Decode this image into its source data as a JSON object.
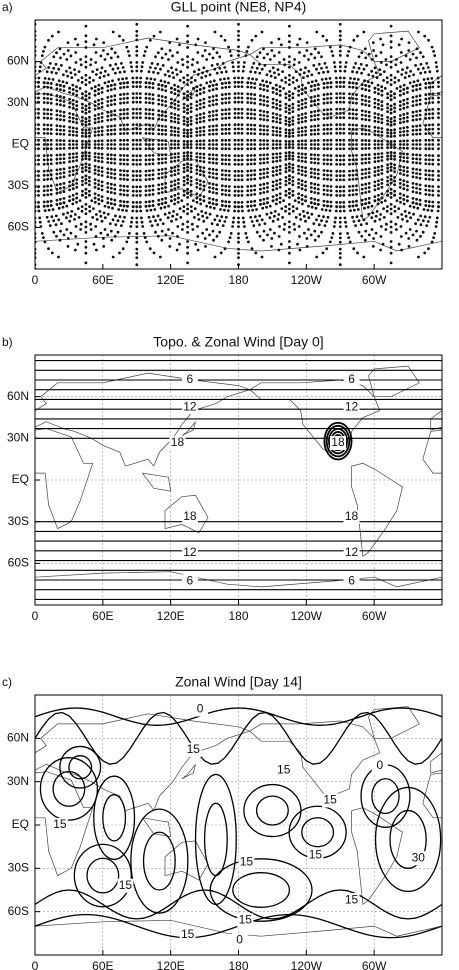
{
  "chart_data": [
    {
      "type": "gll-points",
      "panel_label": "a)",
      "title": "GLL point (NE8, NP4)",
      "ne": 8,
      "np": 4,
      "xlim": [
        0,
        360
      ],
      "ylim": [
        -90,
        90
      ],
      "grid": false,
      "xticks": [
        0,
        {
          "value": 60,
          "label": "60E"
        },
        {
          "value": 120,
          "label": "120E"
        },
        180,
        {
          "value": 240,
          "label": "120W"
        },
        {
          "value": 300,
          "label": "60W"
        }
      ],
      "yticks": [
        {
          "value": 60,
          "label": "60N"
        },
        {
          "value": 30,
          "label": "30N"
        },
        {
          "value": 0,
          "label": "EQ"
        },
        {
          "value": -30,
          "label": "30S"
        },
        {
          "value": -60,
          "label": "60S"
        }
      ]
    },
    {
      "type": "contour",
      "panel_label": "b)",
      "title": "Topo. & Zonal Wind [Day 0]",
      "xlim": [
        0,
        360
      ],
      "ylim": [
        -90,
        90
      ],
      "grid": true,
      "xticks": [
        0,
        {
          "value": 60,
          "label": "60E"
        },
        {
          "value": 120,
          "label": "120E"
        },
        180,
        {
          "value": 240,
          "label": "120W"
        },
        {
          "value": 300,
          "label": "60W"
        }
      ],
      "yticks": [
        {
          "value": 60,
          "label": "60N"
        },
        {
          "value": 30,
          "label": "30N"
        },
        {
          "value": 0,
          "label": "EQ"
        },
        {
          "value": -30,
          "label": "30S"
        },
        {
          "value": -60,
          "label": "60S"
        }
      ],
      "contour_labels": [
        {
          "value": 6,
          "x": 137,
          "y": 72
        },
        {
          "value": 6,
          "x": 280,
          "y": 72
        },
        {
          "value": 12,
          "x": 137,
          "y": 52.5
        },
        {
          "value": 12,
          "x": 280,
          "y": 52.5
        },
        {
          "value": 18,
          "x": 126,
          "y": 26.6
        },
        {
          "value": 18,
          "x": 268,
          "y": 26.6
        },
        {
          "value": 18,
          "x": 137,
          "y": -26.6
        },
        {
          "value": 18,
          "x": 280,
          "y": -26.6
        },
        {
          "value": 12,
          "x": 137,
          "y": -52.5
        },
        {
          "value": 12,
          "x": 280,
          "y": -52.5
        },
        {
          "value": 6,
          "x": 137,
          "y": -73
        },
        {
          "value": 6,
          "x": 280,
          "y": -73
        }
      ]
    },
    {
      "type": "contour",
      "panel_label": "c)",
      "title": "Zonal Wind [Day 14]",
      "xlim": [
        0,
        360
      ],
      "ylim": [
        -90,
        90
      ],
      "grid": true,
      "xticks": [
        0,
        {
          "value": 60,
          "label": "60E"
        },
        {
          "value": 120,
          "label": "120E"
        },
        180,
        {
          "value": 240,
          "label": "120W"
        },
        {
          "value": 300,
          "label": "60W"
        }
      ],
      "yticks": [
        {
          "value": 60,
          "label": "60N"
        },
        {
          "value": 30,
          "label": "30N"
        },
        {
          "value": 0,
          "label": "EQ"
        },
        {
          "value": -30,
          "label": "30S"
        },
        {
          "value": -60,
          "label": "60S"
        }
      ],
      "contour_labels": [
        {
          "value": 0,
          "x": 146,
          "y": 80
        },
        {
          "value": 15,
          "x": 140,
          "y": 52
        },
        {
          "value": 15,
          "x": 220,
          "y": 38
        },
        {
          "value": 15,
          "x": 261,
          "y": 17
        },
        {
          "value": 0,
          "x": 305,
          "y": 41
        },
        {
          "value": 15,
          "x": 22,
          "y": 0
        },
        {
          "value": 15,
          "x": 248,
          "y": -21
        },
        {
          "value": 30,
          "x": 339,
          "y": -23
        },
        {
          "value": 15,
          "x": 80,
          "y": -42
        },
        {
          "value": 15,
          "x": 187,
          "y": -26
        },
        {
          "value": 15,
          "x": 186,
          "y": -66
        },
        {
          "value": 15,
          "x": 135,
          "y": -76
        },
        {
          "value": 15,
          "x": 280,
          "y": -52
        },
        {
          "value": 0,
          "x": 181,
          "y": -80
        }
      ]
    }
  ]
}
